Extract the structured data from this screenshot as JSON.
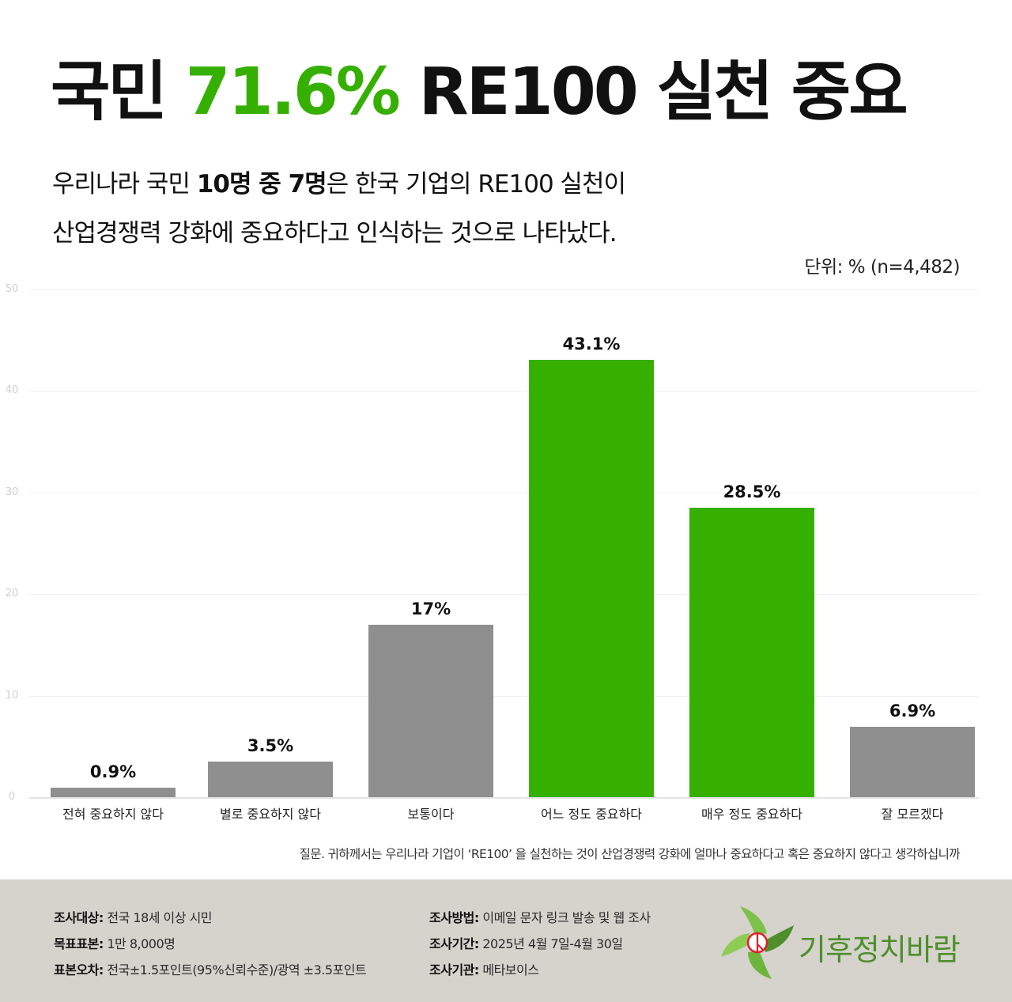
{
  "header": {
    "title_prefix": "국민",
    "title_accent": "71.6%",
    "title_suffix": "RE100 실천 중요",
    "accent_color": "#36b000"
  },
  "subtitle": {
    "line1_pre": "우리나라 국민 ",
    "line1_bold": "10명 중 7명",
    "line1_post": "은 한국 기업의 RE100 실천이",
    "line2": "산업경쟁력 강화에 중요하다고 인식하는 것으로 나타났다."
  },
  "unit_note": "단위: %  (n=4,482)",
  "chart_data": {
    "type": "bar",
    "title": "국민 71.6% RE100 실천 중요",
    "xlabel": "",
    "ylabel": "%",
    "ylim": [
      0,
      50
    ],
    "yticks": [
      0,
      10,
      20,
      30,
      40,
      50
    ],
    "grid": true,
    "categories": [
      "전혀 중요하지 않다",
      "별로 중요하지 않다",
      "보통이다",
      "어느 정도 중요하다",
      "매우 정도 중요하다",
      "잘 모르겠다"
    ],
    "values": [
      0.9,
      3.5,
      17,
      43.1,
      28.5,
      6.9
    ],
    "value_labels": [
      "0.9%",
      "3.5%",
      "17%",
      "43.1%",
      "28.5%",
      "6.9%"
    ],
    "bar_colors": [
      "#8f8f8f",
      "#8f8f8f",
      "#8f8f8f",
      "#36b000",
      "#36b000",
      "#8f8f8f"
    ],
    "sample_size": "n=4,482",
    "unit": "%"
  },
  "question": "질문. 귀하께서는 우리나라 기업이 ‘RE100’ 을 실천하는 것이 산업경쟁력 강화에 얼마나 중요하다고 혹은 중요하지 않다고 생각하십니까",
  "footer": {
    "left": [
      {
        "key": "조사대상:",
        "value": " 전국 18세 이상 시민"
      },
      {
        "key": "목표표본:",
        "value": " 1만 8,000명"
      },
      {
        "key": "표본오차:",
        "value": " 전국±1.5포인트(95%신뢰수준)/광역 ±3.5포인트"
      }
    ],
    "right": [
      {
        "key": "조사방법:",
        "value": " 이메일 문자 링크 발송 및 웹 조사"
      },
      {
        "key": "조사기간:",
        "value": " 2025년 4월 7일-4월 30일"
      },
      {
        "key": "조사기관:",
        "value": " 메타보이스"
      }
    ],
    "logo_text": "기후정치바람",
    "background": "#d6d2cc"
  }
}
